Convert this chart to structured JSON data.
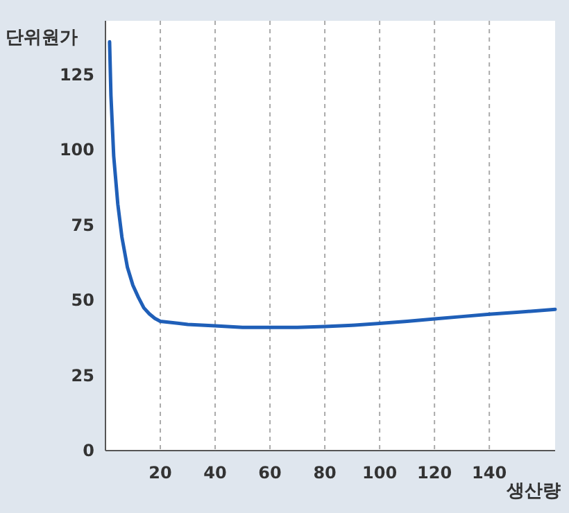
{
  "chart_data": {
    "type": "line",
    "xlabel": "생산량",
    "ylabel": "단위원가",
    "xlim": [
      0,
      164
    ],
    "ylim": [
      0,
      143
    ],
    "xticks": [
      20,
      40,
      60,
      80,
      100,
      120,
      140
    ],
    "yticks": [
      0,
      25,
      50,
      75,
      100,
      125
    ],
    "grid": "x",
    "marker": "none",
    "line_style": "solid",
    "series": [
      {
        "color": "#1f5fb8",
        "x": [
          1.5,
          2,
          3,
          4.5,
          6,
          8,
          10,
          12,
          14,
          16,
          18,
          20,
          30,
          40,
          50,
          60,
          70,
          80,
          90,
          100,
          110,
          120,
          130,
          140,
          150,
          164
        ],
        "values": [
          136,
          118,
          98,
          82,
          71,
          61,
          55,
          51,
          47.5,
          45.5,
          44,
          43,
          42,
          41.5,
          41,
          41,
          41,
          41.3,
          41.7,
          42.3,
          43,
          43.8,
          44.6,
          45.4,
          46,
          47
        ]
      }
    ]
  }
}
